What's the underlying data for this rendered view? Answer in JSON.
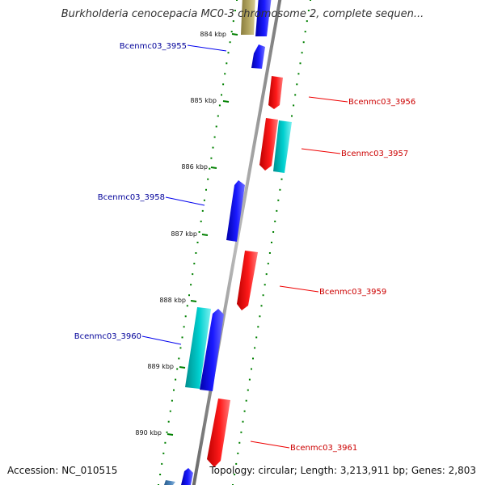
{
  "header": {
    "title": "Burkholderia cenocepacia MC0-3 chromosome 2, complete sequen..."
  },
  "footer": {
    "accession": "Accession: NC_010515",
    "topology": "Topology: circular; Length: 3,213,911 bp; Genes: 2,803"
  },
  "colors": {
    "forward_gene": "#0000ee",
    "reverse_gene": "#ee0000",
    "rna_gene": "#00bbbb",
    "other_gene": "#a89a55",
    "grey_gene": "#4477aa",
    "backbone": "#888888",
    "tick": "#008000",
    "forward_label": "#000099",
    "reverse_label": "#cc0000"
  },
  "scale_labels": [
    "884 kbp",
    "885 kbp",
    "886 kbp",
    "887 kbp",
    "888 kbp",
    "889 kbp",
    "890 kbp"
  ],
  "gene_labels": [
    {
      "text": "Bcenmc03_3955",
      "strand": "forward"
    },
    {
      "text": "Bcenmc03_3956",
      "strand": "reverse"
    },
    {
      "text": "Bcenmc03_3957",
      "strand": "reverse"
    },
    {
      "text": "Bcenmc03_3958",
      "strand": "forward"
    },
    {
      "text": "Bcenmc03_3959",
      "strand": "reverse"
    },
    {
      "text": "Bcenmc03_3960",
      "strand": "forward"
    },
    {
      "text": "Bcenmc03_3961",
      "strand": "reverse"
    }
  ]
}
